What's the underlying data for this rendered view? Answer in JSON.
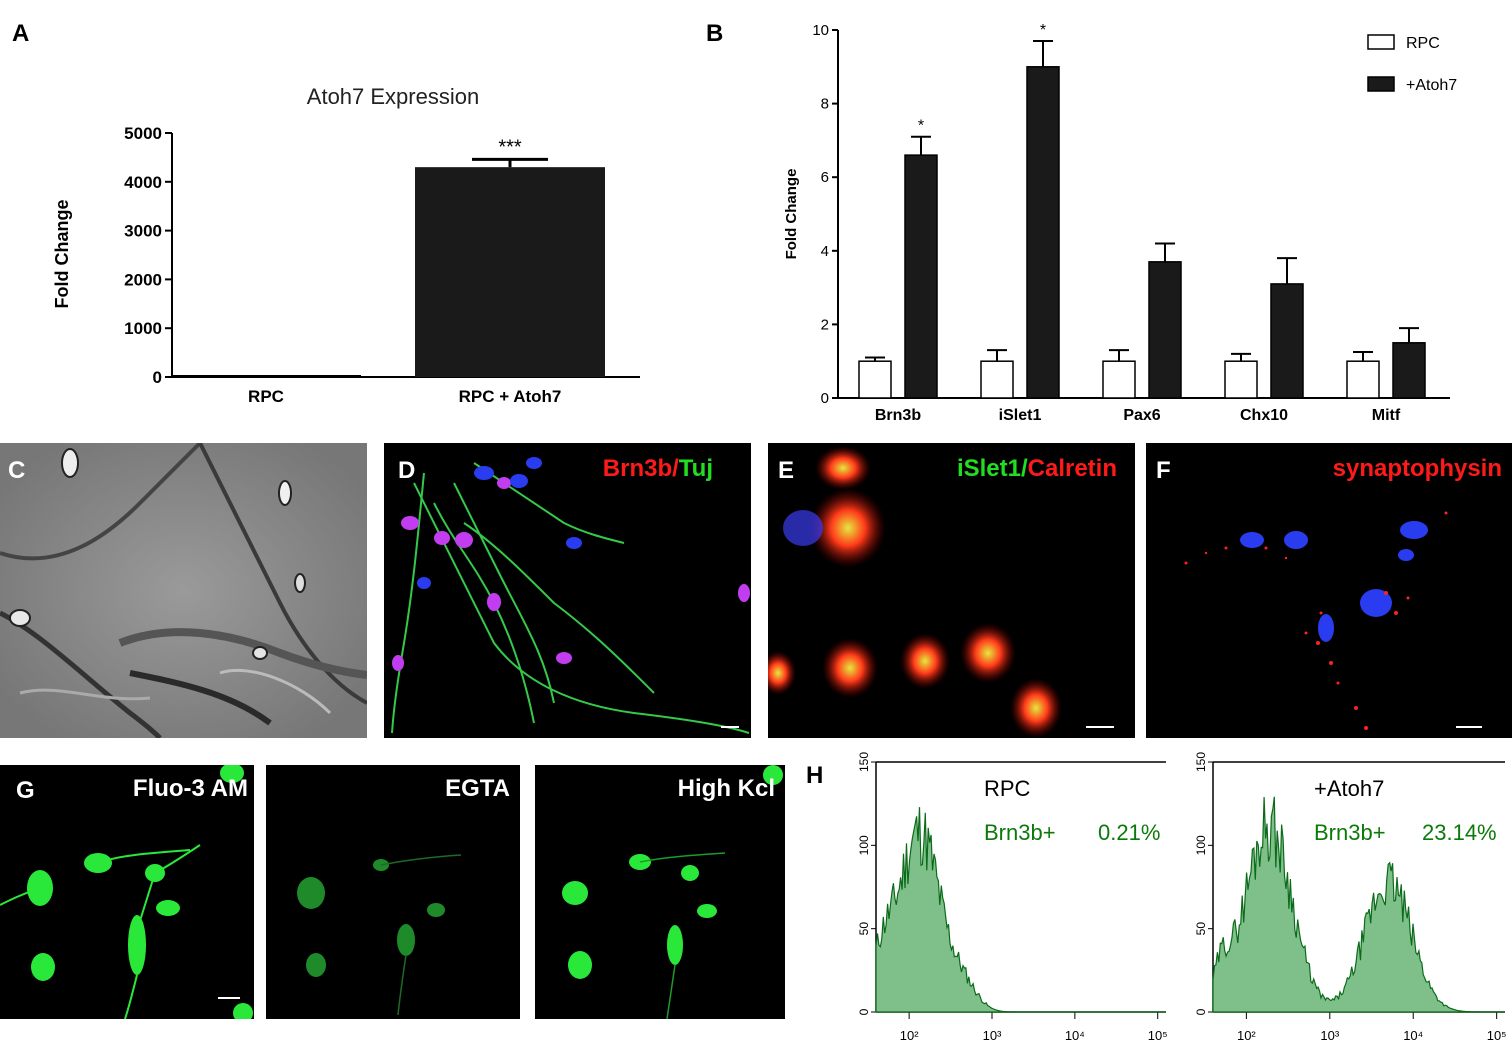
{
  "panels": {
    "A": "A",
    "B": "B",
    "C": "C",
    "D": "D",
    "E": "E",
    "F": "F",
    "G": "G",
    "H": "H"
  },
  "chart_data": [
    {
      "panel": "A",
      "type": "bar",
      "title": "Atoh7 Expression",
      "ylabel": "Fold  Change",
      "xlabel": "",
      "categories": [
        "RPC",
        "RPC + Atoh7"
      ],
      "values": [
        1,
        4300
      ],
      "errors": [
        0,
        160
      ],
      "significance": [
        "",
        "***"
      ],
      "ylim": [
        0,
        5000
      ],
      "yticks": [
        0,
        1000,
        2000,
        3000,
        4000,
        5000
      ],
      "colors": [
        "#000000",
        "#1a1a1a"
      ],
      "grid": false
    },
    {
      "panel": "B",
      "type": "bar",
      "title": "",
      "ylabel": "Fold  Change",
      "xlabel": "",
      "categories": [
        "Brn3b",
        "iSlet1",
        "Pax6",
        "Chx10",
        "Mitf"
      ],
      "series": [
        {
          "name": "RPC",
          "values": [
            1.0,
            1.0,
            1.0,
            1.0,
            1.0
          ],
          "errors": [
            0.1,
            0.3,
            0.3,
            0.2,
            0.25
          ],
          "color": "#ffffff"
        },
        {
          "name": "+Atoh7",
          "values": [
            6.6,
            9.0,
            3.7,
            3.1,
            1.5
          ],
          "errors": [
            0.5,
            0.7,
            0.5,
            0.7,
            0.4
          ],
          "color": "#1a1a1a"
        }
      ],
      "significance": [
        "*",
        "*",
        "",
        "",
        ""
      ],
      "ylim": [
        0,
        10
      ],
      "yticks": [
        0,
        2,
        4,
        6,
        8,
        10
      ],
      "legend": "top-right",
      "grid": false
    }
  ],
  "micrographs": {
    "D": {
      "parts": [
        "Brn3b",
        "/",
        "Tuj"
      ],
      "colors": [
        "#ff1a1a",
        "#ff1a1a",
        "#22dd22"
      ]
    },
    "E": {
      "parts": [
        "iSlet1",
        "/",
        "Calretin"
      ],
      "colors": [
        "#22dd22",
        "#22dd22",
        "#ff1a1a"
      ]
    },
    "F": {
      "parts": [
        "synaptophysin"
      ],
      "colors": [
        "#ff1a1a"
      ]
    },
    "G1": "Fluo-3 AM",
    "G2": "EGTA",
    "G3": "High Kcl"
  },
  "flow": {
    "yticks": [
      "0",
      "50",
      "100",
      "150"
    ],
    "xticks": [
      "10²",
      "10³",
      "10⁴",
      "10⁵"
    ],
    "left": {
      "sample": "RPC",
      "marker": "Brn3b+",
      "percent": "0.21%"
    },
    "right": {
      "sample": "+Atoh7",
      "marker": "Brn3b+",
      "percent": "23.14%"
    },
    "fill_color": "#7fc08a",
    "line_color": "#0b6b1a",
    "label_color": "#0b7a0b"
  }
}
